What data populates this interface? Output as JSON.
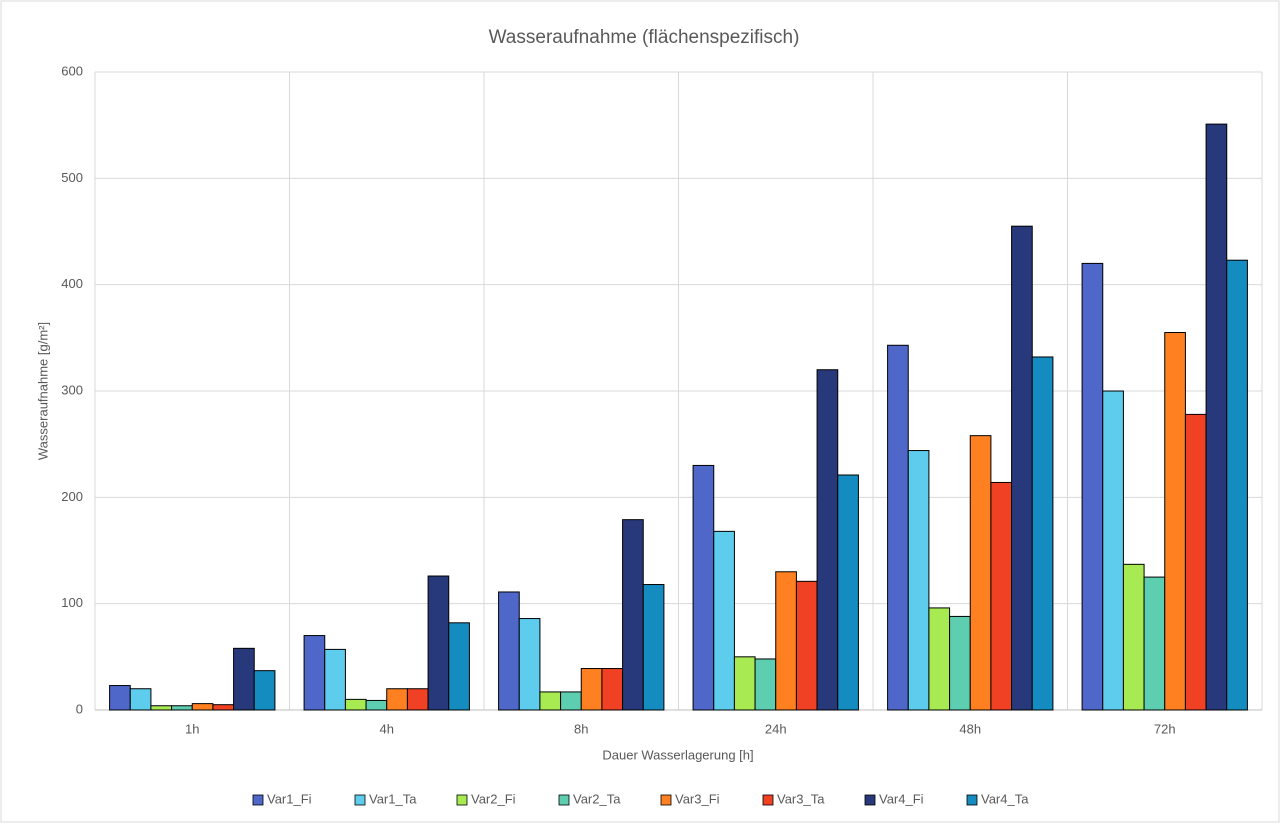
{
  "chart_data": {
    "type": "bar",
    "title": "Wasseraufnahme (flächenspezifisch)",
    "x_label": "Dauer Wasserlagerung [h]",
    "y_label": "Wasseraufnahme [g/m²]",
    "categories": [
      "1h",
      "4h",
      "8h",
      "24h",
      "48h",
      "72h"
    ],
    "series": [
      {
        "name": "Var1_Fi",
        "color": "#4e67c8",
        "values": [
          23,
          70,
          111,
          230,
          343,
          420
        ]
      },
      {
        "name": "Var1_Ta",
        "color": "#5ecced",
        "values": [
          20,
          57,
          86,
          168,
          244,
          300
        ]
      },
      {
        "name": "Var2_Fi",
        "color": "#a7ea52",
        "values": [
          4,
          10,
          17,
          50,
          96,
          137
        ]
      },
      {
        "name": "Var2_Ta",
        "color": "#5dceaf",
        "values": [
          4,
          9,
          17,
          48,
          88,
          125
        ]
      },
      {
        "name": "Var3_Fi",
        "color": "#ff8021",
        "values": [
          6,
          20,
          39,
          130,
          258,
          355
        ]
      },
      {
        "name": "Var3_Ta",
        "color": "#f14124",
        "values": [
          5,
          20,
          39,
          121,
          214,
          278
        ]
      },
      {
        "name": "Var4_Fi",
        "color": "#27397a",
        "values": [
          58,
          126,
          179,
          320,
          455,
          551
        ]
      },
      {
        "name": "Var4_Ta",
        "color": "#148cbf",
        "values": [
          37,
          82,
          118,
          221,
          332,
          423
        ]
      }
    ],
    "ylim": [
      0,
      600
    ],
    "yticks": [
      0,
      100,
      200,
      300,
      400,
      500,
      600
    ],
    "grid": true,
    "legend": "bottom"
  }
}
